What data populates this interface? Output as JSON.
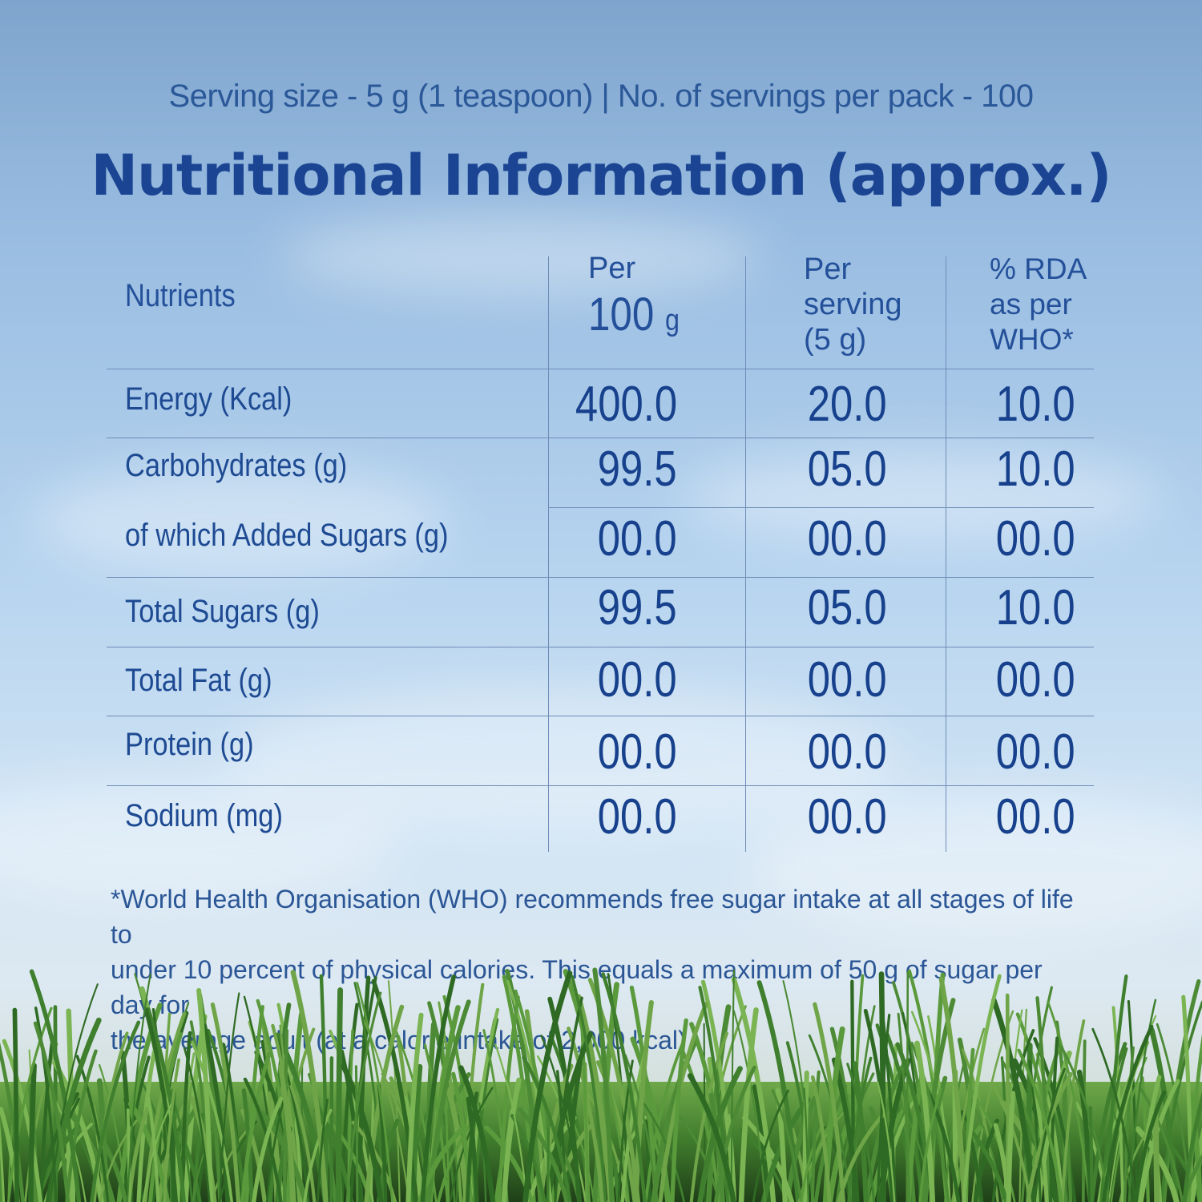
{
  "serving_line": "Serving size - 5 g (1 teaspoon) | No. of servings per pack - 100",
  "title": "Nutritional Information (approx.)",
  "table": {
    "headers": {
      "nutrients": "Nutrients",
      "per100_top": "Per",
      "per100_num": "100",
      "per100_unit": "g",
      "per_serving_1": "Per",
      "per_serving_2": "serving",
      "per_serving_3": "(5 g)",
      "rda_1": "% RDA",
      "rda_2": "as per",
      "rda_3": "WHO*"
    },
    "rows": [
      {
        "label": "Energy (Kcal)",
        "per100": "400.0",
        "serving": "20.0",
        "rda": "10.0"
      },
      {
        "label": "Carbohydrates (g)",
        "per100": "99.5",
        "serving": "05.0",
        "rda": "10.0"
      },
      {
        "label": "of which Added Sugars (g)",
        "per100": "00.0",
        "serving": "00.0",
        "rda": "00.0"
      },
      {
        "label": "Total Sugars (g)",
        "per100": "99.5",
        "serving": "05.0",
        "rda": "10.0"
      },
      {
        "label": "Total Fat (g)",
        "per100": "00.0",
        "serving": "00.0",
        "rda": "00.0"
      },
      {
        "label": "Protein (g)",
        "per100": "00.0",
        "serving": "00.0",
        "rda": "00.0"
      },
      {
        "label": "Sodium (mg)",
        "per100": "00.0",
        "serving": "00.0",
        "rda": "00.0"
      }
    ]
  },
  "footnote": {
    "line1": "*World Health Organisation (WHO) recommends free sugar intake at all stages of life to",
    "line2": "under 10 percent of physical calories. This equals a maximum of 50 g of sugar per day for",
    "line3": "the average adult (at a calorie intake of 2,000 kcal)."
  },
  "colors": {
    "text_primary": "#1b4593",
    "rule_lines": "#6f8cb8",
    "grass": "#3f7a2c"
  }
}
